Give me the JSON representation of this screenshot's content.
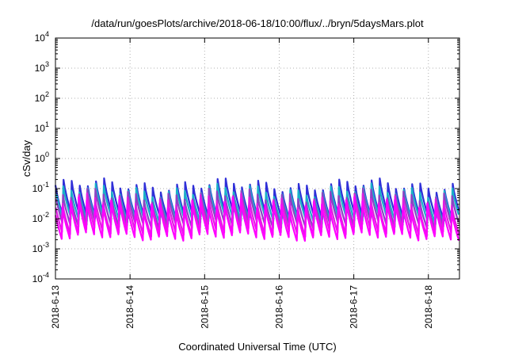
{
  "chart_data": {
    "type": "line",
    "title": "/data/run/goesPlots/archive/2018-06-18/10:00/flux/../bryn/5daysMars.plot",
    "xlabel": "Coordinated Universal Time (UTC)",
    "ylabel": "cSv/day",
    "yscale": "log",
    "ylim": [
      0.0001,
      10000
    ],
    "xlim": [
      "2018-06-13 00:00",
      "2018-06-18 10:00"
    ],
    "y_ticks": [
      {
        "base": "10",
        "exp": "-4"
      },
      {
        "base": "10",
        "exp": "-3"
      },
      {
        "base": "10",
        "exp": "-2"
      },
      {
        "base": "10",
        "exp": "-1"
      },
      {
        "base": "10",
        "exp": "0"
      },
      {
        "base": "10",
        "exp": "1"
      },
      {
        "base": "10",
        "exp": "2"
      },
      {
        "base": "10",
        "exp": "3"
      },
      {
        "base": "10",
        "exp": "4"
      }
    ],
    "x_ticks": [
      "2018-6-13",
      "2018-6-14",
      "2018-6-15",
      "2018-6-16",
      "2018-6-17",
      "2018-6-18"
    ],
    "grid": true,
    "legend": "none",
    "pattern": "sawtooth, about 9 cycles per day",
    "series": [
      {
        "color": "#2f2fd8",
        "peak": 0.13,
        "trough": 0.012
      },
      {
        "color": "#1ab0c8",
        "peak": 0.085,
        "trough": 0.009
      },
      {
        "color": "#8b44c4",
        "peak": 0.06,
        "trough": 0.006
      },
      {
        "color": "#e020e0",
        "peak": 0.04,
        "trough": 0.0035
      },
      {
        "color": "#ff00ff",
        "peak": 0.03,
        "trough": 0.0025
      }
    ]
  }
}
